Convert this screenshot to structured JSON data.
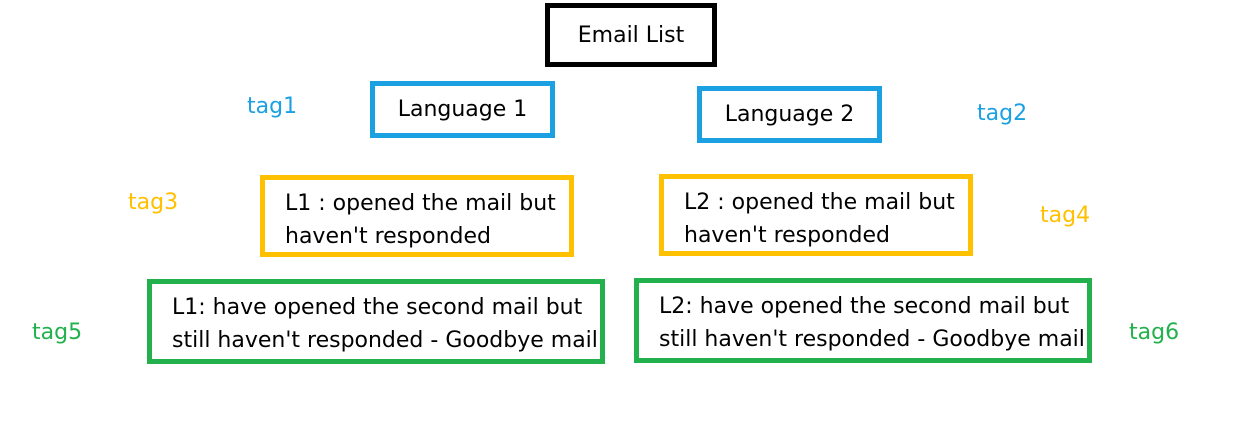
{
  "colors": {
    "root": "#000000",
    "language": "#1ba1e2",
    "opened": "#ffc000",
    "goodbye": "#22b14c"
  },
  "root": {
    "label": "Email List"
  },
  "language1": {
    "label": "Language 1",
    "tag": "tag1"
  },
  "language2": {
    "label": "Language 2",
    "tag": "tag2"
  },
  "l1_opened": {
    "line1": "L1 : opened the mail but",
    "line2": "haven't responded",
    "tag": "tag3"
  },
  "l2_opened": {
    "line1": "L2 : opened the mail but",
    "line2": "haven't responded",
    "tag": "tag4"
  },
  "l1_goodbye": {
    "line1": "L1: have opened the second mail but",
    "line2": "still haven't responded - Goodbye mail",
    "tag": "tag5"
  },
  "l2_goodbye": {
    "line1": "L2: have opened the second mail but",
    "line2": "still haven't responded - Goodbye mail",
    "tag": "tag6"
  }
}
